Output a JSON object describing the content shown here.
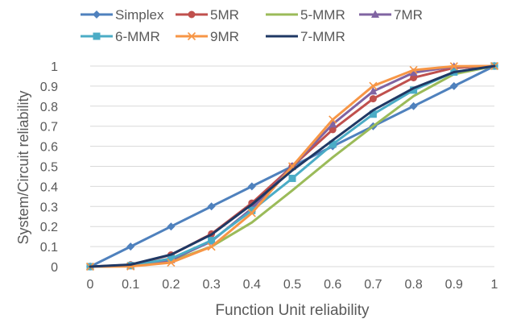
{
  "chart_data": {
    "type": "line",
    "title": "",
    "xlabel": "Function Unit reliability",
    "ylabel": "System/Circuit reliability",
    "xlim": [
      0,
      1
    ],
    "ylim": [
      0,
      1
    ],
    "x": [
      0,
      0.1,
      0.2,
      0.3,
      0.4,
      0.5,
      0.6,
      0.7,
      0.8,
      0.9,
      1
    ],
    "x_tick_labels": [
      "0",
      "0.1",
      "0.2",
      "0.3",
      "0.4",
      "0.5",
      "0.6",
      "0.7",
      "0.8",
      "0.9",
      "1"
    ],
    "y_tick_labels": [
      "0",
      "0.1",
      "0.2",
      "0.3",
      "0.4",
      "0.5",
      "0.6",
      "0.7",
      "0.8",
      "0.9",
      "1"
    ],
    "grid": "horizontal",
    "legend_position": "top",
    "series": [
      {
        "name": "Simplex",
        "color": "#4f81bd",
        "marker": "diamond",
        "values": [
          0,
          0.1,
          0.2,
          0.3,
          0.4,
          0.5,
          0.6,
          0.7,
          0.8,
          0.9,
          1
        ]
      },
      {
        "name": "5MR",
        "color": "#c0504d",
        "marker": "circle",
        "values": [
          0,
          0.009,
          0.058,
          0.163,
          0.317,
          0.5,
          0.683,
          0.837,
          0.942,
          0.991,
          1
        ]
      },
      {
        "name": "5-MMR",
        "color": "#9bbb59",
        "marker": "none",
        "values": [
          0,
          0.004,
          0.027,
          0.1,
          0.22,
          0.38,
          0.545,
          0.7,
          0.85,
          0.96,
          1
        ]
      },
      {
        "name": "7MR",
        "color": "#8064a2",
        "marker": "triangle",
        "values": [
          0,
          0.003,
          0.033,
          0.126,
          0.29,
          0.5,
          0.71,
          0.874,
          0.967,
          0.997,
          1
        ]
      },
      {
        "name": "6-MMR",
        "color": "#4bacc6",
        "marker": "square",
        "values": [
          0,
          0.005,
          0.04,
          0.13,
          0.28,
          0.44,
          0.61,
          0.76,
          0.88,
          0.97,
          1
        ]
      },
      {
        "name": "9MR",
        "color": "#f79646",
        "marker": "x",
        "values": [
          0,
          0.001,
          0.02,
          0.099,
          0.267,
          0.5,
          0.733,
          0.901,
          0.98,
          0.999,
          1
        ]
      },
      {
        "name": "7-MMR",
        "color": "#1f3864",
        "marker": "none",
        "values": [
          0,
          0.01,
          0.06,
          0.16,
          0.31,
          0.48,
          0.63,
          0.78,
          0.89,
          0.97,
          1
        ]
      }
    ]
  }
}
